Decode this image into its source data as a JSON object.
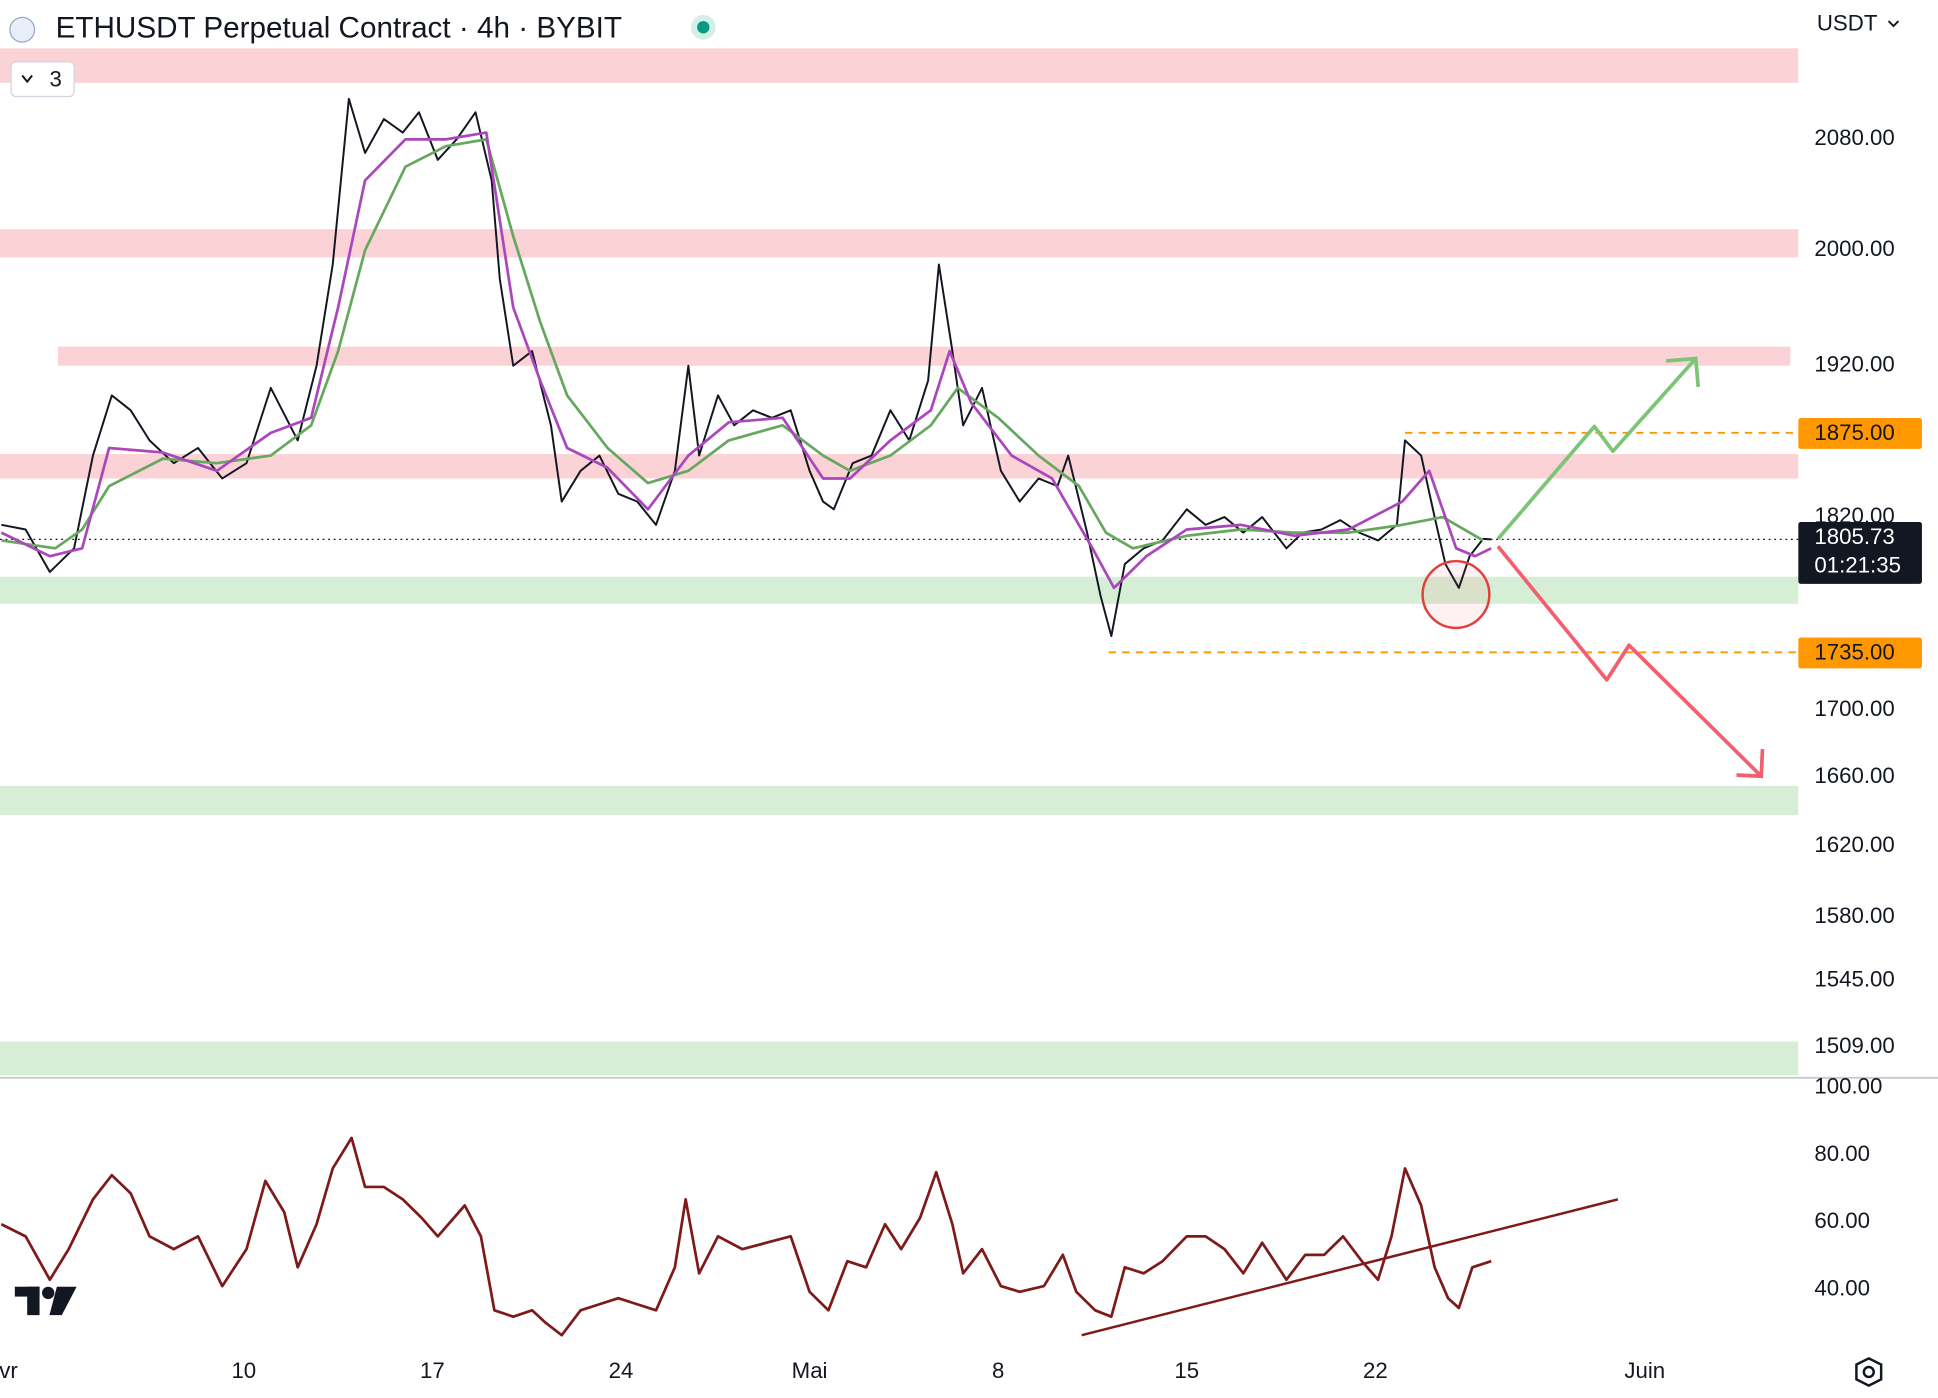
{
  "header": {
    "title": "ETHUSDT Perpetual Contract · 4h · BYBIT",
    "collapsed_count": 3,
    "currency": "USDT"
  },
  "chart_data": [
    {
      "type": "line",
      "yscale": "log",
      "grid": false,
      "xlim": [
        -0.05,
        66.7
      ],
      "ylim": [
        1494,
        2185
      ],
      "xticks": [
        {
          "value": 0,
          "label": "Avr"
        },
        {
          "value": 9,
          "label": "10"
        },
        {
          "value": 16,
          "label": "17"
        },
        {
          "value": 23,
          "label": "24"
        },
        {
          "value": 30,
          "label": "Mai"
        },
        {
          "value": 37,
          "label": "8"
        },
        {
          "value": 44,
          "label": "15"
        },
        {
          "value": 51,
          "label": "22"
        },
        {
          "value": 61,
          "label": "Juin"
        }
      ],
      "yticks": [
        {
          "value": 2080,
          "label": "2080.00"
        },
        {
          "value": 2000,
          "label": "2000.00"
        },
        {
          "value": 1920,
          "label": "1920.00"
        },
        {
          "value": 1820,
          "label": "1820.00"
        },
        {
          "value": 1700,
          "label": "1700.00"
        },
        {
          "value": 1660,
          "label": "1660.00"
        },
        {
          "value": 1620,
          "label": "1620.00"
        },
        {
          "value": 1580,
          "label": "1580.00"
        },
        {
          "value": 1545,
          "label": "1545.00"
        },
        {
          "value": 1509,
          "label": "1509.00"
        }
      ],
      "zones": [
        {
          "range": [
            2122,
            2148
          ],
          "x": [
            -0.05,
            66.7
          ],
          "color": "#fbd3d7"
        },
        {
          "range": [
            1995,
            2015
          ],
          "x": [
            -0.05,
            66.7
          ],
          "color": "#fbd3d7"
        },
        {
          "range": [
            1920,
            1933
          ],
          "x": [
            2.1,
            66.4
          ],
          "color": "#fbd3d7"
        },
        {
          "range": [
            1845,
            1861
          ],
          "x": [
            -0.05,
            66.7
          ],
          "color": "#fbd3d7"
        },
        {
          "range": [
            1765,
            1782
          ],
          "x": [
            -0.05,
            66.7
          ],
          "color": "#d7eed6"
        },
        {
          "range": [
            1638,
            1655
          ],
          "x": [
            -0.05,
            66.7
          ],
          "color": "#d7eed6"
        },
        {
          "range": [
            1494,
            1512
          ],
          "x": [
            -0.05,
            66.7
          ],
          "color": "#d7eed6"
        }
      ],
      "levels": [
        {
          "value": 1875,
          "label": "1875.00",
          "from": 52.1,
          "color": "#ff9800"
        },
        {
          "value": 1735,
          "label": "1735.00",
          "from": 41.1,
          "color": "#ff9800"
        }
      ],
      "last_price": 1805.73,
      "countdown": "01:21:35",
      "series": [
        {
          "color": "#131722",
          "x": [
            0,
            0.9,
            1.8,
            2.7,
            3.4,
            4.1,
            4.8,
            5.5,
            6.4,
            7.3,
            8.2,
            9.1,
            10.0,
            11.0,
            11.7,
            12.3,
            12.9,
            13.5,
            14.2,
            14.9,
            15.5,
            16.2,
            16.9,
            17.6,
            18.2,
            18.5,
            19.0,
            19.7,
            20.4,
            20.8,
            21.5,
            22.2,
            22.9,
            23.6,
            24.3,
            25.0,
            25.5,
            25.9,
            26.6,
            27.2,
            27.9,
            28.6,
            29.3,
            30.0,
            30.5,
            30.9,
            31.6,
            32.3,
            33.0,
            33.7,
            34.4,
            34.8,
            35.3,
            35.7,
            36.4,
            37.1,
            37.8,
            38.5,
            39.2,
            39.6,
            40.3,
            40.8,
            41.2,
            41.7,
            42.4,
            43.1,
            44.0,
            44.7,
            45.4,
            46.1,
            46.8,
            47.7,
            48.3,
            49.0,
            49.7,
            50.4,
            51.1,
            51.8,
            52.1,
            52.7,
            53.2,
            53.6,
            54.1,
            54.5,
            55.0,
            55.3
          ],
          "values": [
            1815,
            1812,
            1785,
            1800,
            1860,
            1900,
            1890,
            1870,
            1855,
            1865,
            1845,
            1855,
            1905,
            1870,
            1920,
            1990,
            2110,
            2070,
            2095,
            2085,
            2100,
            2065,
            2080,
            2100,
            2050,
            1980,
            1920,
            1930,
            1880,
            1830,
            1850,
            1860,
            1835,
            1830,
            1815,
            1850,
            1920,
            1860,
            1900,
            1880,
            1890,
            1885,
            1890,
            1850,
            1830,
            1825,
            1855,
            1860,
            1890,
            1870,
            1910,
            1990,
            1930,
            1880,
            1905,
            1850,
            1830,
            1845,
            1840,
            1860,
            1810,
            1770,
            1745,
            1790,
            1800,
            1805,
            1825,
            1815,
            1820,
            1810,
            1820,
            1800,
            1810,
            1812,
            1818,
            1810,
            1805,
            1815,
            1870,
            1860,
            1820,
            1790,
            1775,
            1795,
            1806,
            1805.73
          ]
        },
        {
          "color": "#66a85e",
          "x": [
            0,
            2,
            3,
            4,
            6,
            8,
            10,
            11.5,
            12.5,
            13.5,
            15,
            16.5,
            18,
            19,
            20,
            21,
            22.5,
            24,
            25.5,
            27,
            29,
            30.5,
            31.5,
            33,
            34.5,
            35.5,
            37,
            38.5,
            40,
            41,
            42,
            44,
            46,
            48,
            50,
            52,
            53.5,
            55
          ],
          "values": [
            1805,
            1800,
            1812,
            1840,
            1858,
            1855,
            1860,
            1880,
            1930,
            2000,
            2060,
            2075,
            2080,
            2010,
            1950,
            1900,
            1865,
            1842,
            1850,
            1870,
            1880,
            1860,
            1850,
            1860,
            1880,
            1905,
            1885,
            1860,
            1840,
            1810,
            1800,
            1808,
            1812,
            1810,
            1810,
            1815,
            1820,
            1805
          ]
        },
        {
          "color": "#ab47bc",
          "x": [
            0,
            1.8,
            3,
            4,
            6,
            8,
            10,
            11.5,
            12.5,
            13.5,
            15,
            16.5,
            18,
            19,
            20,
            21,
            22.5,
            24,
            25.5,
            27,
            29,
            30.5,
            31.5,
            33,
            34.5,
            35.2,
            36,
            37.5,
            39,
            40.5,
            41.3,
            42.5,
            44,
            46,
            48,
            50,
            52,
            53,
            54,
            54.7,
            55.3
          ],
          "values": [
            1810,
            1795,
            1800,
            1865,
            1862,
            1850,
            1875,
            1885,
            1960,
            2050,
            2080,
            2080,
            2085,
            1960,
            1910,
            1865,
            1852,
            1825,
            1860,
            1882,
            1885,
            1845,
            1845,
            1870,
            1890,
            1930,
            1895,
            1860,
            1845,
            1800,
            1775,
            1795,
            1812,
            1815,
            1808,
            1812,
            1830,
            1850,
            1800,
            1795,
            1800
          ]
        }
      ]
    },
    {
      "type": "line",
      "yscale": "linear",
      "grid": false,
      "ylim": [
        22.8,
        102.6
      ],
      "yticks": [
        {
          "value": 100,
          "label": "100.00"
        },
        {
          "value": 80,
          "label": "80.00"
        },
        {
          "value": 60,
          "label": "60.00"
        },
        {
          "value": 40,
          "label": "40.00"
        }
      ],
      "trendline": {
        "x": [
          40.1,
          60
        ],
        "values": [
          26.4,
          66.8
        ],
        "color": "#7e1a1a"
      },
      "series": [
        {
          "color": "#7e1a1a",
          "x": [
            0,
            0.9,
            1.8,
            2.5,
            3.4,
            4.1,
            4.8,
            5.5,
            6.4,
            7.3,
            8.2,
            9.1,
            9.8,
            10.5,
            11.0,
            11.7,
            12.3,
            13.0,
            13.5,
            14.2,
            14.9,
            15.6,
            16.2,
            17.2,
            17.8,
            18.3,
            19.0,
            19.7,
            20.2,
            20.8,
            21.5,
            22.2,
            22.9,
            23.6,
            24.3,
            25.0,
            25.4,
            25.9,
            26.6,
            27.5,
            28.4,
            29.3,
            30.0,
            30.7,
            31.4,
            32.1,
            32.8,
            33.4,
            34.1,
            34.7,
            35.3,
            35.7,
            36.4,
            37.1,
            37.8,
            38.7,
            39.4,
            39.9,
            40.6,
            41.2,
            41.7,
            42.4,
            43.1,
            44.0,
            44.7,
            45.4,
            46.1,
            46.8,
            47.7,
            48.4,
            49.1,
            49.8,
            50.5,
            51.1,
            51.6,
            52.1,
            52.7,
            53.2,
            53.7,
            54.1,
            54.6,
            55.3
          ],
          "values": [
            59.4,
            55.8,
            42.9,
            52,
            66.8,
            74,
            68.6,
            55.8,
            52,
            55.8,
            41,
            52,
            72.3,
            63,
            46.6,
            59.4,
            76,
            85.1,
            70.5,
            70.5,
            66.8,
            61.3,
            55.8,
            65,
            55.8,
            33.8,
            31.9,
            33.8,
            30.1,
            26.4,
            33.8,
            35.6,
            37.4,
            35.6,
            33.8,
            46.6,
            66.8,
            44.8,
            55.8,
            52,
            53.9,
            55.8,
            39.3,
            33.8,
            48.4,
            46.6,
            59.4,
            52,
            61.3,
            74.9,
            59.4,
            44.8,
            52,
            41,
            39.3,
            41,
            50.3,
            39.3,
            33.8,
            31.9,
            46.6,
            44.8,
            48.4,
            55.8,
            55.8,
            52,
            44.8,
            53.9,
            42.9,
            50.3,
            50.3,
            55.8,
            48.4,
            42.9,
            55.8,
            76,
            65,
            46.6,
            37.4,
            34.5,
            46.6,
            48.4
          ]
        }
      ]
    }
  ]
}
